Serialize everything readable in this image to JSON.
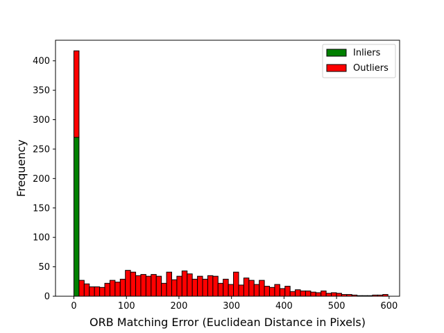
{
  "chart_data": {
    "type": "bar",
    "subtype": "stacked-histogram",
    "title": "",
    "xlabel": "ORB Matching Error (Euclidean Distance in Pixels)",
    "ylabel": "Frequency",
    "xlim": [
      -35,
      620
    ],
    "ylim": [
      0,
      435
    ],
    "xticks": [
      0,
      100,
      200,
      300,
      400,
      500,
      600
    ],
    "yticks": [
      0,
      50,
      100,
      150,
      200,
      250,
      300,
      350,
      400
    ],
    "grid": false,
    "legend_position": "top-right",
    "bin_width": 9.8,
    "bin_start": 0,
    "series": [
      {
        "name": "Inliers",
        "color": "#008000",
        "values": [
          270,
          0,
          0,
          0,
          0,
          0,
          0,
          0,
          0,
          0,
          0,
          0,
          0,
          0,
          0,
          0,
          0,
          0,
          0,
          0,
          0,
          0,
          0,
          0,
          0,
          0,
          0,
          0,
          0,
          0,
          0,
          0,
          0,
          0,
          0,
          0,
          0,
          0,
          0,
          0,
          0,
          0,
          0,
          0,
          0,
          0,
          0,
          0,
          0,
          0,
          0,
          0,
          0,
          0,
          0,
          0,
          0,
          0,
          0,
          0,
          0
        ]
      },
      {
        "name": "Outliers",
        "color": "#ff0000",
        "values": [
          147,
          27,
          21,
          16,
          16,
          15,
          22,
          27,
          24,
          29,
          44,
          41,
          35,
          37,
          34,
          37,
          34,
          22,
          41,
          28,
          34,
          43,
          38,
          29,
          34,
          29,
          35,
          34,
          22,
          29,
          20,
          41,
          19,
          31,
          27,
          20,
          27,
          17,
          15,
          20,
          13,
          17,
          8,
          11,
          9,
          9,
          7,
          6,
          9,
          5,
          6,
          5,
          3,
          3,
          2,
          1,
          1,
          1,
          2,
          2,
          3
        ]
      }
    ]
  }
}
